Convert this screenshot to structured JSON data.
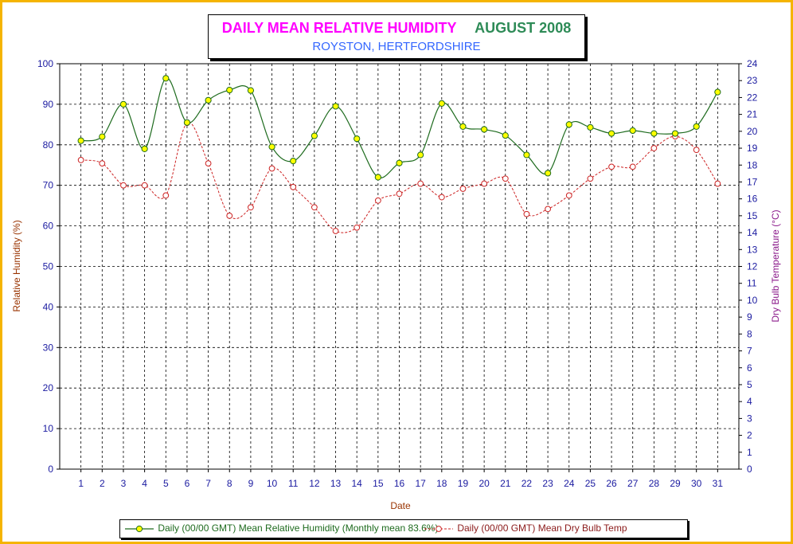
{
  "title": {
    "main": "DAILY MEAN RELATIVE HUMIDITY",
    "period": "AUGUST 2008",
    "subtitle": "ROYSTON, HERTFORDSHIRE"
  },
  "chart_data": {
    "type": "line",
    "title": "DAILY MEAN RELATIVE HUMIDITY   AUGUST 2008",
    "subtitle": "ROYSTON, HERTFORDSHIRE",
    "xlabel": "Date",
    "ylabel": "Relative Humidity (%)",
    "y2label": "Dry Bulb Temperature (°C)",
    "x": [
      1,
      2,
      3,
      4,
      5,
      6,
      7,
      8,
      9,
      10,
      11,
      12,
      13,
      14,
      15,
      16,
      17,
      18,
      19,
      20,
      21,
      22,
      23,
      24,
      25,
      26,
      27,
      28,
      29,
      30,
      31
    ],
    "xticks": [
      "1",
      "2",
      "3",
      "4",
      "5",
      "6",
      "7",
      "8",
      "9",
      "10",
      "11",
      "12",
      "13",
      "14",
      "15",
      "16",
      "17",
      "18",
      "19",
      "20",
      "21",
      "22",
      "23",
      "24",
      "25",
      "26",
      "27",
      "28",
      "29",
      "30",
      "31"
    ],
    "ylim": [
      0,
      100
    ],
    "yticks": [
      "0",
      "10",
      "20",
      "30",
      "40",
      "50",
      "60",
      "70",
      "80",
      "90",
      "100"
    ],
    "y2lim": [
      0,
      24
    ],
    "y2ticks": [
      "0",
      "1",
      "2",
      "3",
      "4",
      "5",
      "6",
      "7",
      "8",
      "9",
      "10",
      "11",
      "12",
      "13",
      "14",
      "15",
      "16",
      "17",
      "18",
      "19",
      "20",
      "21",
      "22",
      "23",
      "24"
    ],
    "grid": true,
    "legend_position": "bottom",
    "series": [
      {
        "name": "Daily (00/00 GMT) Mean Relative Humidity (Monthly mean 83.6%)",
        "axis": "left",
        "color": "#1e6b1e",
        "marker_fill": "#ffff00",
        "style": "solid",
        "values": [
          81.0,
          82.0,
          90.0,
          79.0,
          96.4,
          85.5,
          91.0,
          93.5,
          93.4,
          79.5,
          76.0,
          82.2,
          89.5,
          81.5,
          72.0,
          75.5,
          77.5,
          90.2,
          84.5,
          83.8,
          82.3,
          77.5,
          73.0,
          85.0,
          84.3,
          82.8,
          83.5,
          82.8,
          82.8,
          84.5,
          93.0
        ]
      },
      {
        "name": "Daily (00/00 GMT) Mean Dry Bulb Temp",
        "axis": "right",
        "color": "#cc2222",
        "marker_fill": "#ffffff",
        "style": "dashed",
        "values": [
          18.3,
          18.1,
          16.8,
          16.8,
          16.2,
          20.5,
          18.1,
          15.0,
          15.5,
          17.8,
          16.7,
          15.5,
          14.1,
          14.3,
          15.9,
          16.3,
          16.9,
          16.1,
          16.6,
          16.9,
          17.2,
          15.1,
          15.4,
          16.2,
          17.2,
          17.9,
          17.9,
          19.0,
          19.7,
          18.9,
          16.9
        ]
      }
    ]
  },
  "legend": {
    "rh_label": "Daily (00/00 GMT) Mean Relative Humidity (Monthly mean 83.6%)",
    "temp_label": "Daily (00/00 GMT) Mean Dry Bulb Temp"
  }
}
